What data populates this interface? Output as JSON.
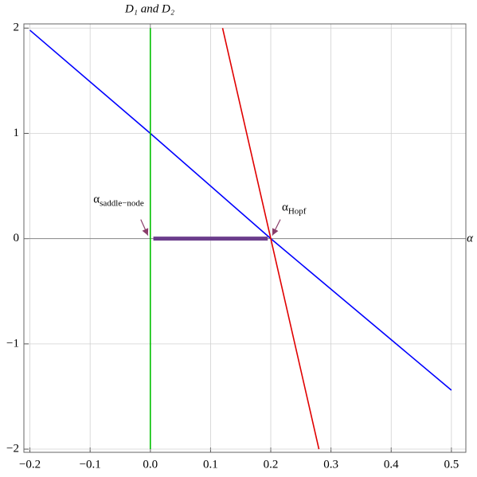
{
  "chart_data": {
    "type": "line",
    "ylabel": "D₁ and D₂",
    "xlabel": "α",
    "xlim": [
      -0.21,
      0.524
    ],
    "ylim": [
      -2.03,
      2.04
    ],
    "xticks": [
      {
        "value": -0.2,
        "label": "−0.2"
      },
      {
        "value": -0.1,
        "label": "−0.1"
      },
      {
        "value": 0,
        "label": "0.0"
      },
      0.1,
      0.2,
      0.3,
      0.4,
      0.5
    ],
    "yticks": [
      {
        "value": -2,
        "label": "−2"
      },
      {
        "value": -1,
        "label": "−1"
      },
      0,
      1,
      2
    ],
    "grid": true,
    "series": [
      {
        "color": "#0000ff",
        "width": 1.6,
        "x": [
          -0.2,
          0,
          0.2,
          0.5
        ],
        "values": [
          1.98,
          1,
          0,
          -1.44
        ]
      },
      {
        "color": "#00c000",
        "width": 1.6,
        "x": [
          0,
          0
        ],
        "values": [
          2,
          -2
        ]
      },
      {
        "color": "#e00000",
        "width": 1.6,
        "x": [
          0.12,
          0.28
        ],
        "values": [
          2,
          -2
        ]
      },
      {
        "color": "#6b3d8c",
        "width": 5,
        "x": [
          0.005,
          0.195
        ],
        "values": [
          0,
          0
        ]
      }
    ],
    "annotations": [
      {
        "text": "α",
        "sub": "saddle−node",
        "x": 0,
        "y": 0
      },
      {
        "text": "α",
        "sub": "Hopf",
        "x": 0.2,
        "y": 0
      }
    ]
  }
}
